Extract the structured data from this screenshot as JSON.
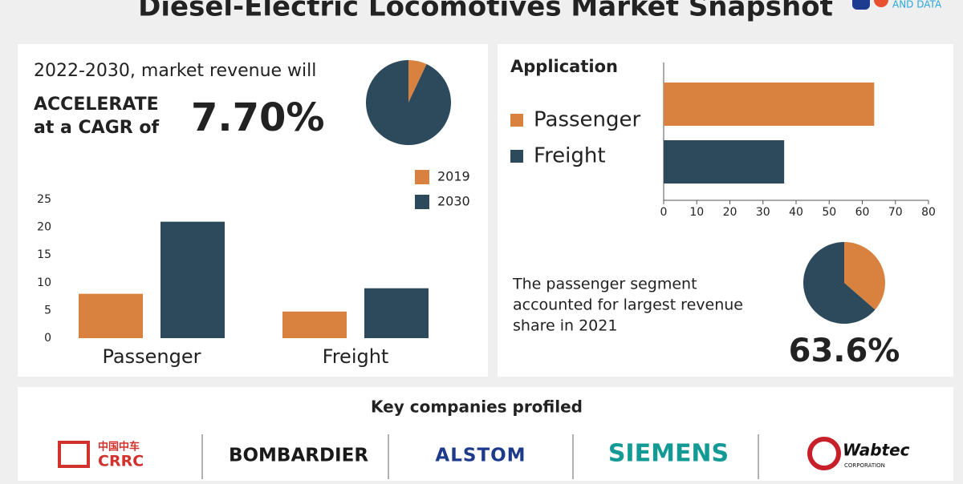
{
  "header": {
    "title": "Diesel-Electric Locomotives Market Snapshot",
    "logo_text": "AND DATA"
  },
  "cagr": {
    "intro": "2022-2030, market revenue will",
    "line1": "ACCELERATE",
    "line2": "at a CAGR of",
    "value_label": "7.70%"
  },
  "chart_data": [
    {
      "type": "pie",
      "values": [
        7,
        93
      ],
      "colors": [
        "#d9823f",
        "#2c4a5c"
      ]
    },
    {
      "type": "bar",
      "categories": [
        "Passenger",
        "Freight"
      ],
      "series": [
        {
          "name": "2019",
          "color": "#d9823f",
          "values": [
            8,
            4.8
          ]
        },
        {
          "name": "2030",
          "color": "#2c4a5c",
          "values": [
            21,
            9
          ]
        }
      ],
      "ylim": [
        0,
        25
      ],
      "yticks": [
        0,
        5,
        10,
        15,
        20,
        25
      ]
    },
    {
      "type": "hbar",
      "title": "Application",
      "categories": [
        "Passenger",
        "Freight"
      ],
      "values": [
        63.6,
        36.4
      ],
      "colors": [
        "#d9823f",
        "#2c4a5c"
      ],
      "xlim": [
        0,
        80
      ],
      "xticks": [
        0,
        10,
        20,
        30,
        40,
        50,
        60,
        70,
        80
      ]
    },
    {
      "type": "pie",
      "values": [
        36.4,
        63.6
      ],
      "colors": [
        "#d9823f",
        "#2c4a5c"
      ],
      "annotation": [
        "The passenger segment",
        "accounted for largest revenue",
        "share in 2021"
      ],
      "highlight": "63.6%"
    }
  ],
  "companies": {
    "title": "Key companies profiled",
    "logos": [
      {
        "name": "CRRC",
        "sub": "中国中车"
      },
      {
        "name": "BOMBARDIER"
      },
      {
        "name": "ALSTOM"
      },
      {
        "name": "SIEMENS"
      },
      {
        "name": "Wabtec",
        "sub": "CORPORATION"
      }
    ]
  }
}
